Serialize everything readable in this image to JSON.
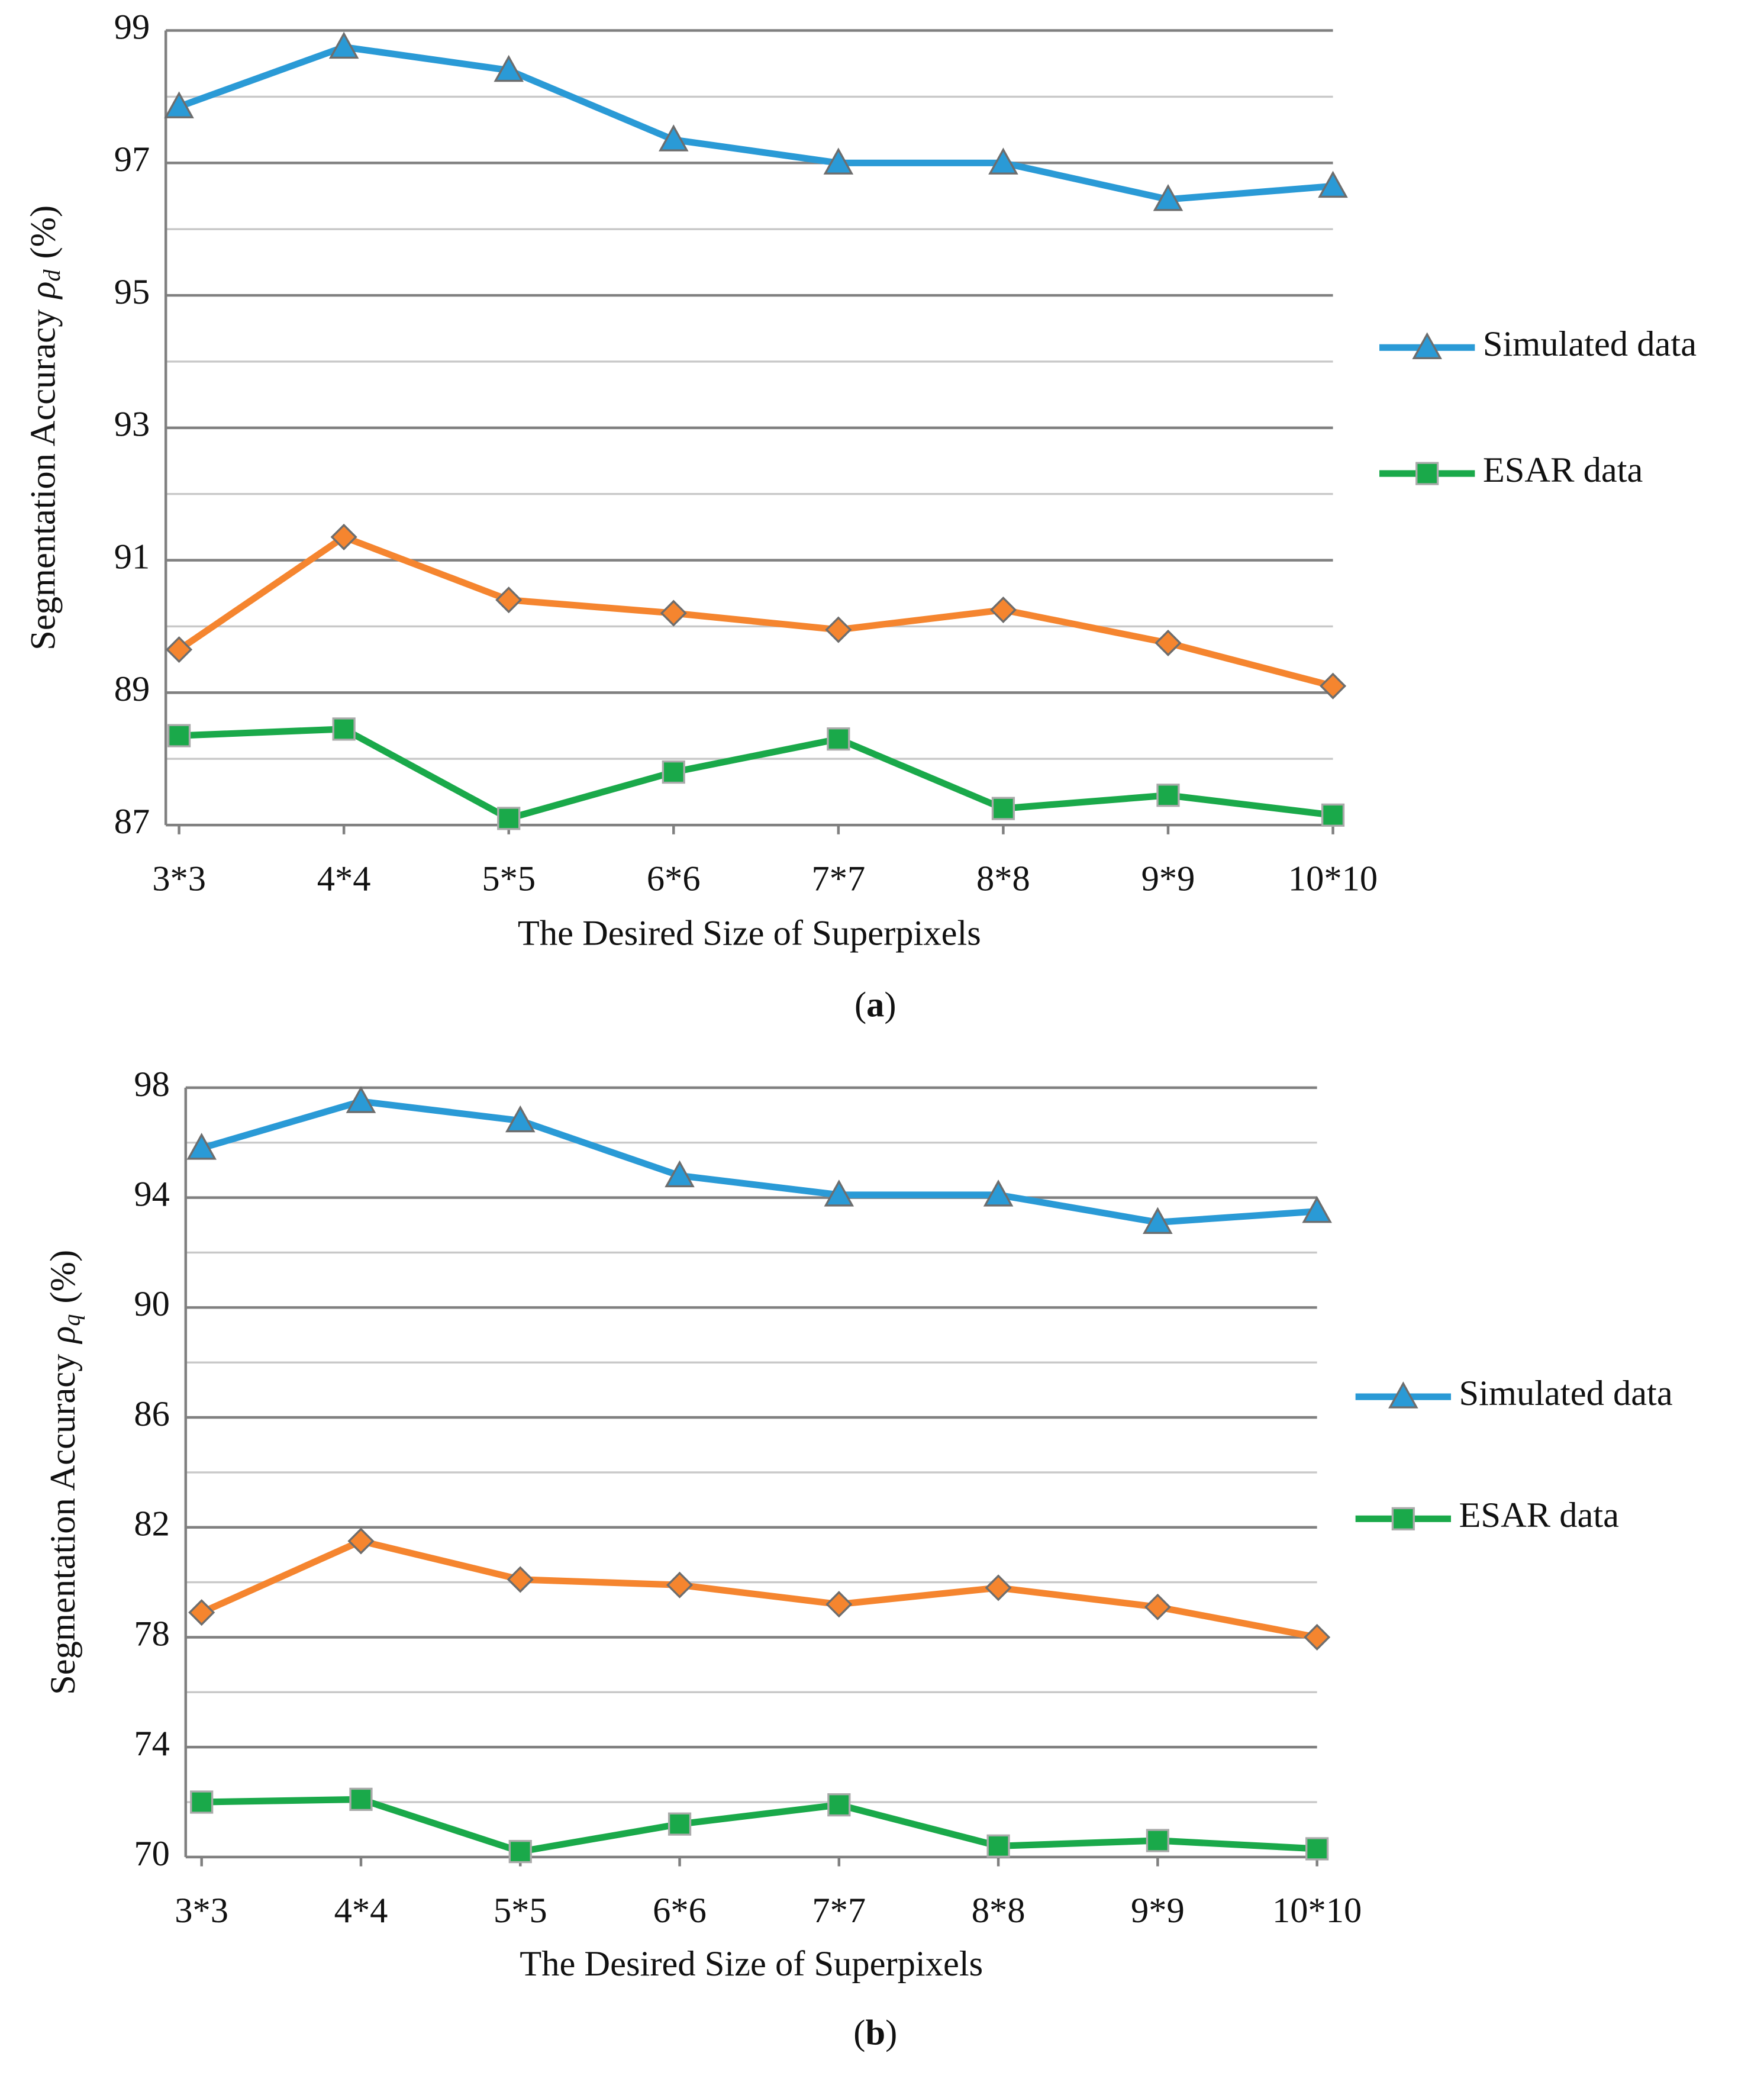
{
  "chart_data": [
    {
      "type": "line",
      "caption": [
        "(",
        "a",
        ")"
      ],
      "xlabel": "The Desired Size of Superpixels",
      "ylabel": [
        "Segmentation Accuracy",
        "ρ",
        "d",
        "(%)"
      ],
      "categories": [
        "3*3",
        "4*4",
        "5*5",
        "6*6",
        "7*7",
        "8*8",
        "9*9",
        "10*10"
      ],
      "ylim": [
        87,
        99
      ],
      "yticks": [
        87,
        89,
        91,
        93,
        95,
        97,
        99
      ],
      "minor_grid": [
        88,
        90,
        92,
        94,
        96,
        98
      ],
      "grid": true,
      "legend": "right",
      "series": [
        {
          "name": "Simulated data",
          "color": "#2a9ad6",
          "marker": "triangle",
          "values": [
            97.85,
            98.75,
            98.4,
            97.35,
            97.0,
            97.0,
            96.45,
            96.65
          ]
        },
        {
          "color": "#f5852f",
          "marker": "diamond",
          "values": [
            89.65,
            91.35,
            90.4,
            90.2,
            89.95,
            90.25,
            89.75,
            89.1
          ]
        },
        {
          "name": "ESAR data",
          "color": "#1aa94a",
          "marker": "square",
          "values": [
            88.35,
            88.45,
            87.1,
            87.8,
            88.3,
            87.25,
            87.45,
            87.15
          ]
        }
      ]
    },
    {
      "type": "line",
      "caption": [
        "(",
        "b",
        ")"
      ],
      "xlabel": "The Desired Size of Superpixels",
      "ylabel": [
        "Segmentation Accuracy",
        "ρ",
        "q",
        "(%)"
      ],
      "categories": [
        "3*3",
        "4*4",
        "5*5",
        "6*6",
        "7*7",
        "8*8",
        "9*9",
        "10*10"
      ],
      "ylim": [
        70,
        98
      ],
      "yticks": [
        70,
        74,
        78,
        82,
        86,
        90,
        94,
        98
      ],
      "minor_grid": [
        72,
        76,
        80,
        84,
        88,
        92,
        96
      ],
      "grid": true,
      "legend": "right",
      "series": [
        {
          "name": "Simulated data",
          "color": "#2a9ad6",
          "marker": "triangle",
          "values": [
            95.8,
            97.5,
            96.8,
            94.8,
            94.1,
            94.1,
            93.1,
            93.5
          ]
        },
        {
          "color": "#f5852f",
          "marker": "diamond",
          "values": [
            78.9,
            81.5,
            80.1,
            79.9,
            79.2,
            79.8,
            79.1,
            78.0
          ]
        },
        {
          "name": "ESAR data",
          "color": "#1aa94a",
          "marker": "square",
          "values": [
            72.0,
            72.1,
            70.2,
            71.2,
            71.9,
            70.4,
            70.6,
            70.3
          ]
        }
      ]
    }
  ]
}
